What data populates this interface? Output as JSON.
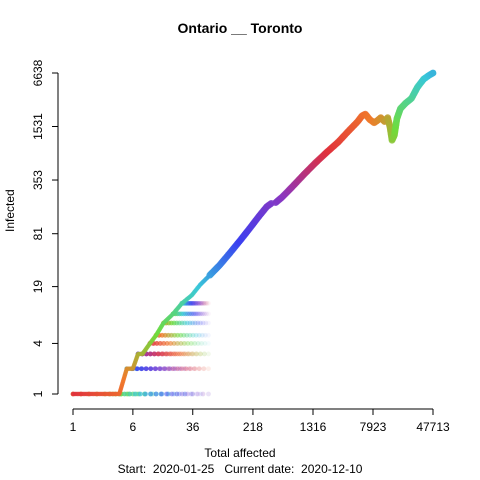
{
  "chart_data": {
    "type": "scatter",
    "title": "Ontario __ Toronto",
    "xlabel": "Total affected",
    "ylabel": "Infected",
    "x_scale": "log",
    "y_scale": "log",
    "x_ticks": [
      1,
      6,
      36,
      218,
      1316,
      7923,
      47713
    ],
    "y_ticks": [
      1,
      4,
      19,
      81,
      353,
      1531,
      6638
    ],
    "xlim": [
      1,
      47713
    ],
    "ylim": [
      1,
      6638
    ],
    "grid": false,
    "legend": "none",
    "footer": {
      "start_label": "Start:",
      "start_date": "2020-01-25",
      "current_label": "Current date:",
      "current_date": "2020-12-10"
    },
    "series": [
      {
        "points": [
          [
            1,
            1
          ],
          [
            3,
            1
          ],
          [
            4,
            1
          ],
          [
            5,
            2
          ],
          [
            6,
            2
          ],
          [
            7,
            3
          ],
          [
            8,
            3
          ],
          [
            10,
            4
          ],
          [
            12,
            5
          ],
          [
            15,
            7
          ],
          [
            20,
            9
          ],
          [
            26,
            12
          ],
          [
            35,
            15
          ],
          [
            45,
            20
          ],
          [
            60,
            26
          ],
          [
            80,
            34
          ],
          [
            110,
            48
          ],
          [
            150,
            68
          ],
          [
            200,
            95
          ],
          [
            260,
            130
          ],
          [
            330,
            170
          ],
          [
            390,
            190
          ],
          [
            430,
            190
          ],
          [
            520,
            220
          ],
          [
            700,
            290
          ],
          [
            1000,
            410
          ],
          [
            1400,
            560
          ],
          [
            2000,
            760
          ],
          [
            2800,
            1000
          ],
          [
            3800,
            1350
          ],
          [
            5000,
            1750
          ],
          [
            5700,
            2050
          ],
          [
            6300,
            2150
          ],
          [
            7200,
            1850
          ],
          [
            8200,
            1700
          ],
          [
            9000,
            1800
          ],
          [
            10000,
            1950
          ],
          [
            11200,
            1750
          ],
          [
            12300,
            1950
          ],
          [
            13200,
            1500
          ],
          [
            14000,
            1050
          ],
          [
            15000,
            1200
          ],
          [
            16200,
            1900
          ],
          [
            18000,
            2500
          ],
          [
            21000,
            2900
          ],
          [
            25000,
            3300
          ],
          [
            30000,
            4500
          ],
          [
            36000,
            5600
          ],
          [
            42000,
            6200
          ],
          [
            47713,
            6638
          ]
        ]
      }
    ],
    "colors": {
      "red": "#e0303c",
      "orange": "#f07a2a",
      "green": "#6fdc3c",
      "cyan": "#38c8d8",
      "blue": "#3b3ff0",
      "purple": "#8a36c0",
      "connector": "#8c93b0"
    }
  }
}
